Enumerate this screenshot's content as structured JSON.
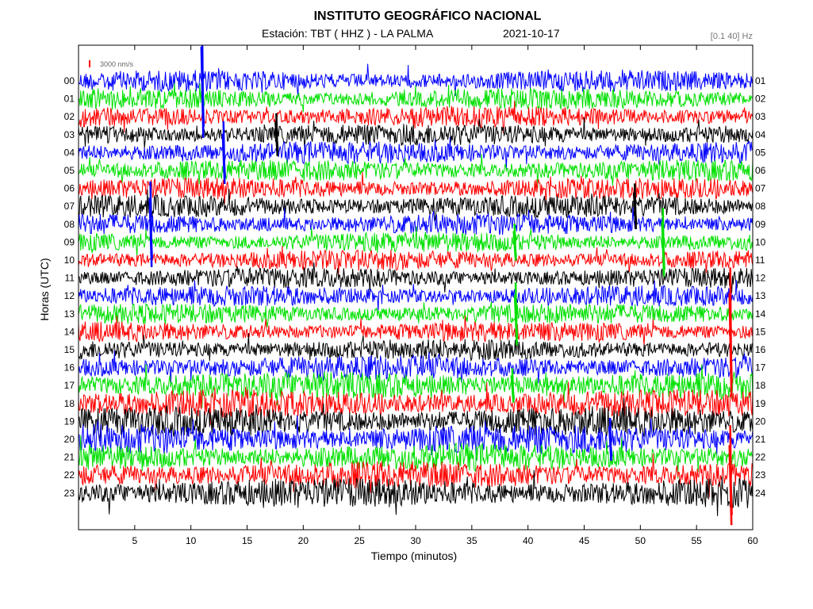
{
  "header": {
    "title": "INSTITUTO GEOGRÁFICO NACIONAL",
    "station": "Estación:  TBT ( HHZ ) - LA PALMA",
    "date": "2021-10-17",
    "filter": "[0.1 40] Hz"
  },
  "chart_data": {
    "type": "line",
    "title": "INSTITUTO GEOGRÁFICO NACIONAL",
    "xlabel": "Tiempo (minutos)",
    "ylabel": "Horas (UTC)",
    "xlim": [
      0,
      60
    ],
    "x_ticks": [
      5,
      10,
      15,
      20,
      25,
      30,
      35,
      40,
      45,
      50,
      55,
      60
    ],
    "left_hours": [
      "00",
      "01",
      "02",
      "03",
      "04",
      "05",
      "06",
      "07",
      "08",
      "09",
      "10",
      "11",
      "12",
      "13",
      "14",
      "15",
      "16",
      "17",
      "18",
      "19",
      "20",
      "21",
      "22",
      "23"
    ],
    "right_hours": [
      "01",
      "02",
      "03",
      "04",
      "05",
      "06",
      "07",
      "08",
      "09",
      "10",
      "11",
      "12",
      "13",
      "14",
      "15",
      "16",
      "17",
      "18",
      "19",
      "20",
      "21",
      "22",
      "23",
      "24"
    ],
    "scale_bar": "3000 nm/s",
    "trace_colors": [
      "#0000ff",
      "#00e000",
      "#ff0000",
      "#000000"
    ],
    "trace_amplitudes": [
      1.0,
      1.0,
      1.0,
      1.05,
      1.05,
      1.0,
      1.0,
      1.05,
      1.0,
      0.95,
      0.95,
      0.95,
      0.95,
      0.95,
      0.95,
      1.0,
      1.15,
      1.3,
      1.3,
      1.4,
      1.4,
      1.3,
      1.3,
      1.4
    ],
    "events": [
      {
        "hour": 0,
        "minute": 11.0,
        "amplitude": 4.0
      },
      {
        "hour": 3,
        "minute": 17.6,
        "amplitude": 1.5
      },
      {
        "hour": 4,
        "minute": 12.9,
        "amplitude": 2.2
      },
      {
        "hour": 7,
        "minute": 49.5,
        "amplitude": 1.6
      },
      {
        "hour": 8,
        "minute": 6.4,
        "amplitude": 3.0
      },
      {
        "hour": 9,
        "minute": 52.0,
        "amplitude": 2.4
      },
      {
        "hour": 9,
        "minute": 38.8,
        "amplitude": 1.3
      },
      {
        "hour": 13,
        "minute": 38.9,
        "amplitude": 2.2
      },
      {
        "hour": 14,
        "minute": 58.0,
        "amplitude": 4.5
      },
      {
        "hour": 17,
        "minute": 38.6,
        "amplitude": 1.2
      },
      {
        "hour": 20,
        "minute": 47.3,
        "amplitude": 1.5
      },
      {
        "hour": 22,
        "minute": 58.0,
        "amplitude": 3.5
      }
    ]
  }
}
